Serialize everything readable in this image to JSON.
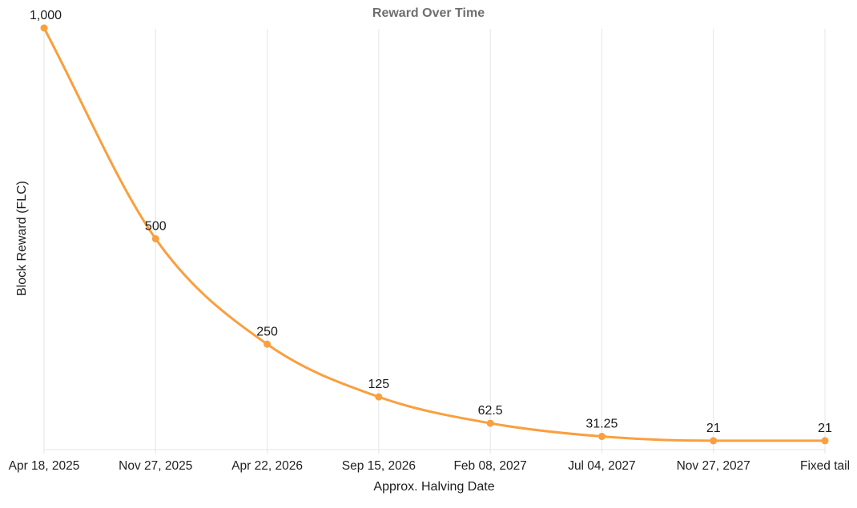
{
  "chart_data": {
    "type": "line",
    "title": "Reward Over Time",
    "xlabel": "Approx. Halving Date",
    "ylabel": "Block Reward (FLC)",
    "categories": [
      "Apr 18, 2025",
      "Nov 27, 2025",
      "Apr 22, 2026",
      "Sep 15, 2026",
      "Feb 08, 2027",
      "Jul 04, 2027",
      "Nov 27, 2027",
      "Fixed tail"
    ],
    "values": [
      1000,
      500,
      250,
      125,
      62.5,
      31.25,
      21,
      21
    ],
    "value_labels": [
      "1,000",
      "500",
      "250",
      "125",
      "62.5",
      "31.25",
      "21",
      "21"
    ],
    "ylim": [
      0,
      1000
    ],
    "grid": "vertical-only",
    "legend_position": "none",
    "curve": "monotone",
    "marker": "circle",
    "colors": {
      "line": "#FA9F3E",
      "marker_fill": "#FA9F3E",
      "grid": "#E4E4E7",
      "axis": "#E4E4E7",
      "title_text": "#6E6E6E",
      "label_text": "#1A1A1A",
      "tick_text": "#212121",
      "background": "#FFFFFF"
    }
  }
}
